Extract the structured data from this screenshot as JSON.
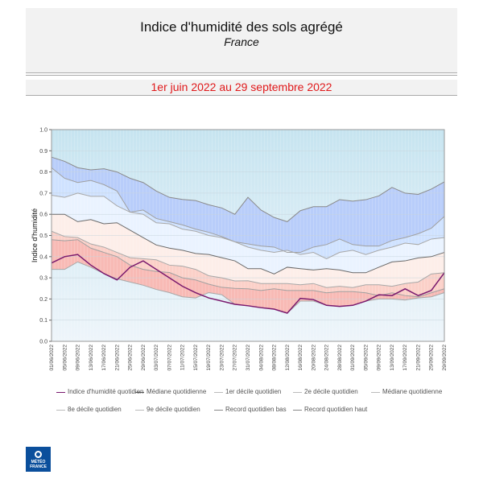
{
  "header": {
    "title": "Indice d'humidité des sols agrégé",
    "subtitle": "France",
    "period": "1er juin 2022 au 29 septembre 2022"
  },
  "logo": {
    "text": "MÉTÉO FRANCE"
  },
  "colors": {
    "above": "#c6e4f0",
    "rec_hi_9": "#b8cdfa",
    "d9_8": "#cfe2ff",
    "d8_med": "#eaf3ff",
    "med_2": "#fdeee9",
    "d2_1": "#fbd0c8",
    "d1_lo": "#f8bab5",
    "below": "#eef5fa",
    "index": "#7a1a6e",
    "lines": "#888888"
  },
  "chart_data": {
    "type": "area",
    "title": "",
    "ylabel": "Indice d'humidité",
    "xlabel": "",
    "ylim": [
      0,
      1
    ],
    "yticks": [
      "0.0",
      "0.1",
      "0.2",
      "0.3",
      "0.4",
      "0.5",
      "0.6",
      "0.7",
      "0.8",
      "0.9",
      "1.0"
    ],
    "x": [
      "01/06/2022",
      "05/06/2022",
      "09/06/2022",
      "13/06/2022",
      "17/06/2022",
      "21/06/2022",
      "25/06/2022",
      "29/06/2022",
      "03/07/2022",
      "07/07/2022",
      "11/07/2022",
      "15/07/2022",
      "19/07/2022",
      "23/07/2022",
      "27/07/2022",
      "31/07/2022",
      "04/08/2022",
      "08/08/2022",
      "12/08/2022",
      "16/08/2022",
      "20/08/2022",
      "24/08/2022",
      "28/08/2022",
      "01/09/2022",
      "05/09/2022",
      "09/09/2022",
      "13/09/2022",
      "17/09/2022",
      "21/09/2022",
      "25/09/2022",
      "29/09/2022"
    ],
    "series": [
      {
        "name": "Record quotidien haut",
        "values": [
          0.87,
          0.85,
          0.82,
          0.81,
          0.815,
          0.8,
          0.77,
          0.75,
          0.71,
          0.68,
          0.67,
          0.665,
          0.645,
          0.63,
          0.6,
          0.68,
          0.62,
          0.585,
          0.565,
          0.617,
          0.636,
          0.636,
          0.669,
          0.662,
          0.669,
          0.687,
          0.727,
          0.7,
          0.694,
          0.719,
          0.753
        ]
      },
      {
        "name": "9e décile quotidien",
        "values": [
          0.82,
          0.77,
          0.75,
          0.76,
          0.74,
          0.71,
          0.61,
          0.62,
          0.58,
          0.565,
          0.55,
          0.53,
          0.515,
          0.495,
          0.47,
          0.46,
          0.45,
          0.445,
          0.42,
          0.42,
          0.445,
          0.457,
          0.483,
          0.457,
          0.45,
          0.45,
          0.476,
          0.49,
          0.508,
          0.534,
          0.59
        ]
      },
      {
        "name": "8e décile quotidien",
        "values": [
          0.69,
          0.68,
          0.7,
          0.685,
          0.685,
          0.64,
          0.61,
          0.6,
          0.56,
          0.555,
          0.53,
          0.52,
          0.5,
          0.49,
          0.47,
          0.445,
          0.43,
          0.42,
          0.43,
          0.41,
          0.42,
          0.39,
          0.42,
          0.43,
          0.41,
          0.43,
          0.445,
          0.464,
          0.457,
          0.483,
          0.49
        ]
      },
      {
        "name": "Médiane quotidienne",
        "values": [
          0.6,
          0.6,
          0.565,
          0.575,
          0.555,
          0.56,
          0.525,
          0.49,
          0.455,
          0.44,
          0.43,
          0.415,
          0.41,
          0.395,
          0.38,
          0.343,
          0.343,
          0.318,
          0.35,
          0.343,
          0.337,
          0.343,
          0.337,
          0.324,
          0.324,
          0.35,
          0.375,
          0.38,
          0.394,
          0.4,
          0.42
        ]
      },
      {
        "name": "2e décile quotidien",
        "values": [
          0.52,
          0.495,
          0.49,
          0.46,
          0.445,
          0.42,
          0.395,
          0.39,
          0.385,
          0.36,
          0.355,
          0.34,
          0.31,
          0.3,
          0.285,
          0.286,
          0.273,
          0.273,
          0.273,
          0.267,
          0.273,
          0.254,
          0.26,
          0.254,
          0.267,
          0.267,
          0.26,
          0.273,
          0.28,
          0.318,
          0.324
        ]
      },
      {
        "name": "1er décile quotidien",
        "values": [
          0.48,
          0.475,
          0.48,
          0.44,
          0.42,
          0.4,
          0.36,
          0.34,
          0.33,
          0.325,
          0.3,
          0.29,
          0.27,
          0.255,
          0.25,
          0.248,
          0.24,
          0.248,
          0.24,
          0.24,
          0.24,
          0.229,
          0.235,
          0.235,
          0.229,
          0.216,
          0.229,
          0.216,
          0.21,
          0.229,
          0.248
        ]
      },
      {
        "name": "Record quotidien bas",
        "values": [
          0.34,
          0.34,
          0.375,
          0.35,
          0.32,
          0.295,
          0.28,
          0.265,
          0.245,
          0.23,
          0.21,
          0.205,
          0.23,
          0.22,
          0.175,
          0.168,
          0.159,
          0.152,
          0.133,
          0.19,
          0.19,
          0.17,
          0.165,
          0.17,
          0.19,
          0.2,
          0.2,
          0.195,
          0.205,
          0.21,
          0.23
        ]
      },
      {
        "name": "Indice d'humidité quotidien",
        "values": [
          0.37,
          0.4,
          0.41,
          0.36,
          0.32,
          0.29,
          0.35,
          0.38,
          0.34,
          0.3,
          0.26,
          0.23,
          0.205,
          0.19,
          0.175,
          0.168,
          0.159,
          0.152,
          0.133,
          0.203,
          0.197,
          0.17,
          0.165,
          0.17,
          0.19,
          0.22,
          0.216,
          0.248,
          0.216,
          0.24,
          0.324
        ]
      }
    ],
    "legend": [
      {
        "label": "Indice d'humidité quotidien",
        "color": "#7a1a6e"
      },
      {
        "label": "Médiane quotidienne",
        "color": "#555555"
      },
      {
        "label": "1er décile quotidien",
        "color": "#bbbbbb"
      },
      {
        "label": "2e décile quotidien",
        "color": "#bbbbbb"
      },
      {
        "label": "Médiane quotidienne",
        "color": "#bbbbbb"
      },
      {
        "label": "8e décile quotidien",
        "color": "#bbbbbb"
      },
      {
        "label": "9e décile quotidien",
        "color": "#bbbbbb"
      },
      {
        "label": "Record quotidien bas",
        "color": "#888888"
      },
      {
        "label": "Record quotidien haut",
        "color": "#888888"
      }
    ],
    "legend_position": "bottom",
    "grid": true
  }
}
